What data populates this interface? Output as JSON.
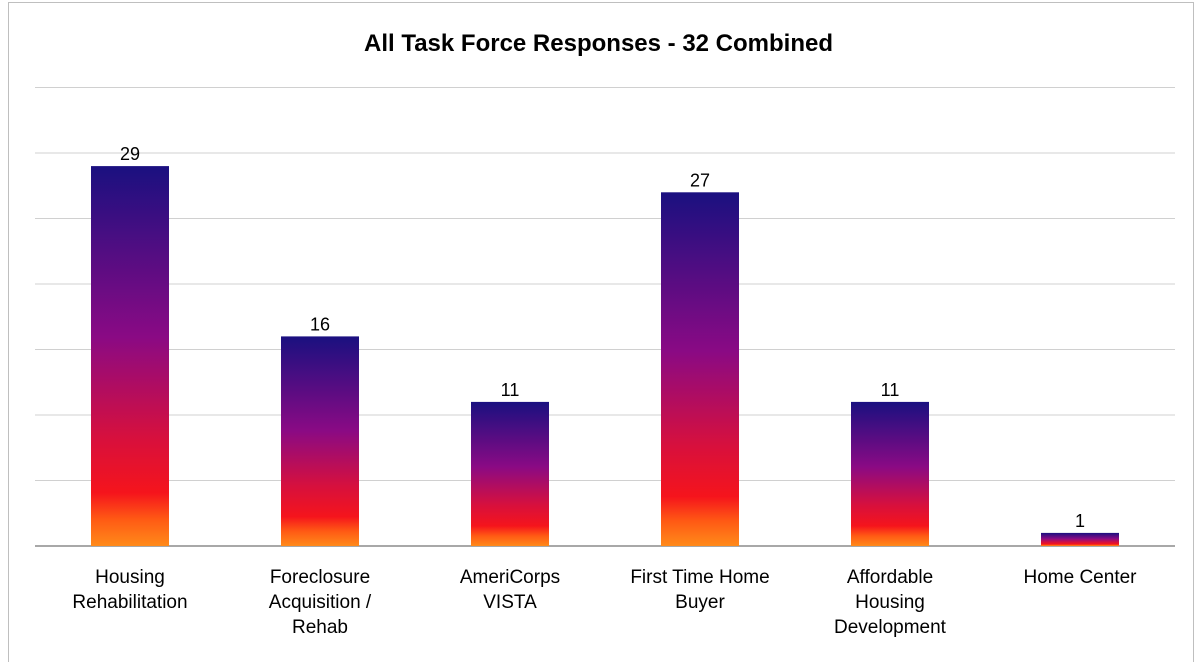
{
  "chart_data": {
    "type": "bar",
    "title": "All Task Force Responses - 32 Combined",
    "categories": [
      [
        "Housing",
        "Rehabilitation"
      ],
      [
        "Foreclosure",
        "Acquisition /",
        "Rehab"
      ],
      [
        "AmeriCorps VISTA"
      ],
      [
        "First Time Home",
        "Buyer"
      ],
      [
        "Affordable",
        "Housing",
        "Development"
      ],
      [
        "Home Center"
      ]
    ],
    "values": [
      29,
      16,
      11,
      27,
      11,
      1
    ],
    "ylim": [
      0,
      35
    ],
    "grid_step": 5,
    "grid": true,
    "legend": "none",
    "xlabel": "",
    "ylabel": "",
    "colors": {
      "top": "#1a1080",
      "middle": "#9a0f7a",
      "lower": "#f5141c",
      "bottom": "#ff7a1a",
      "grid": "#d0d0d0",
      "axis": "#8c8c8c"
    }
  }
}
